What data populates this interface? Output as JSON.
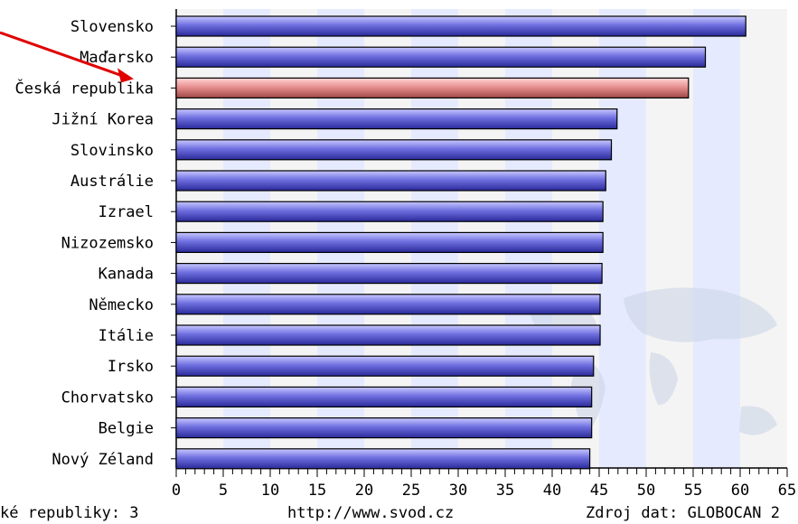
{
  "chart_data": {
    "type": "bar",
    "orientation": "horizontal",
    "categories": [
      "Slovensko",
      "Maďarsko",
      "Česká republika",
      "Jižní Korea",
      "Slovinsko",
      "Austrálie",
      "Izrael",
      "Nizozemsko",
      "Kanada",
      "Německo",
      "Itálie",
      "Irsko",
      "Chorvatsko",
      "Belgie",
      "Nový Zéland"
    ],
    "values": [
      60.6,
      56.3,
      54.5,
      46.9,
      46.3,
      45.7,
      45.4,
      45.4,
      45.3,
      45.1,
      45.1,
      44.4,
      44.2,
      44.2,
      44.0
    ],
    "highlight_category": "Česká republika",
    "xlim": [
      0,
      65
    ],
    "x_ticks": [
      "0",
      "5",
      "10",
      "15",
      "20",
      "25",
      "30",
      "35",
      "40",
      "45",
      "50",
      "55",
      "60",
      "65"
    ],
    "grid": true,
    "colors": {
      "bar": "#6f6fe0",
      "bar_light": "#c8c8ff",
      "bar_dark": "#2a2a9a",
      "highlight": "#e89090",
      "highlight_light": "#ffd6d6",
      "highlight_dark": "#a04848",
      "band_shaded": "#e6eaff",
      "band_plain": "#f4f4f4",
      "arrow": "#e00000"
    }
  },
  "footer": {
    "left": "ké republiky: 3",
    "center": "http://www.svod.cz",
    "right": "Zdroj dat: GLOBOCAN 2"
  }
}
